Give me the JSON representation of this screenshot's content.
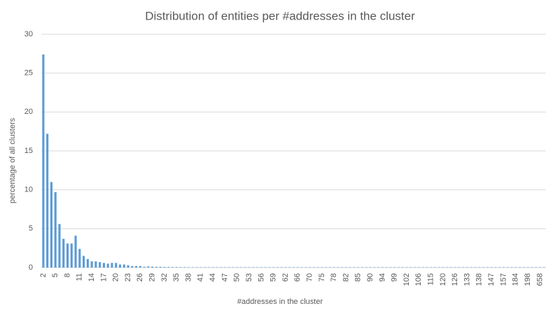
{
  "chart_data": {
    "type": "bar",
    "title": "Distribution of entities per #addresses in the cluster",
    "x_label": "#addresses in the cluster",
    "y_label": "percentage of all clusters",
    "categories": [
      "2",
      null,
      null,
      "5",
      null,
      null,
      "8",
      null,
      null,
      "11",
      null,
      null,
      "14",
      null,
      null,
      "17",
      null,
      null,
      "20",
      null,
      null,
      "23",
      null,
      null,
      "26",
      null,
      null,
      "29",
      null,
      null,
      "32",
      null,
      null,
      "35",
      null,
      null,
      "38",
      null,
      null,
      "41",
      null,
      null,
      "44",
      null,
      null,
      "47",
      null,
      null,
      "50",
      null,
      null,
      "53",
      null,
      null,
      "56",
      null,
      null,
      "59",
      null,
      null,
      "62",
      null,
      null,
      "66",
      null,
      null,
      "70",
      null,
      null,
      "75",
      null,
      null,
      "78",
      null,
      null,
      "82",
      null,
      null,
      "85",
      null,
      null,
      "90",
      null,
      null,
      "94",
      null,
      null,
      "99",
      null,
      null,
      "102",
      null,
      null,
      "106",
      null,
      null,
      "115",
      null,
      null,
      "120",
      null,
      null,
      "126",
      null,
      null,
      "133",
      null,
      null,
      "138",
      null,
      null,
      "147",
      null,
      null,
      "157",
      null,
      null,
      "184",
      null,
      null,
      "198",
      null,
      null,
      "658",
      null
    ],
    "values": [
      27.4,
      17.2,
      11.0,
      9.7,
      5.6,
      3.7,
      3.1,
      3.1,
      4.1,
      2.4,
      1.5,
      1.1,
      0.8,
      0.8,
      0.7,
      0.6,
      0.5,
      0.6,
      0.6,
      0.4,
      0.4,
      0.3,
      0.2,
      0.2,
      0.2,
      0.1,
      0.15,
      0.12,
      0.1,
      0.1,
      0.08,
      0.08,
      0.07,
      0.07,
      0.06,
      0.06,
      0.05,
      0.05,
      0.05,
      0.05,
      0.05,
      0.05,
      0.05,
      0.05,
      0.05,
      0.05,
      0.05,
      0.05,
      0.05,
      0.05,
      0.05,
      0.05,
      0.05,
      0.05,
      0.05,
      0.05,
      0.05,
      0.05,
      0.05,
      0.05,
      0.05,
      0.05,
      0.05,
      0.05,
      0.05,
      0.05,
      0.05,
      0.05,
      0.05,
      0.05,
      0.05,
      0.05,
      0.05,
      0.05,
      0.05,
      0.05,
      0.05,
      0.05,
      0.05,
      0.05,
      0.05,
      0.05,
      0.05,
      0.05,
      0.05,
      0.05,
      0.05,
      0.05,
      0.05,
      0.05,
      0.05,
      0.05,
      0.05,
      0.05,
      0.05,
      0.05,
      0.05,
      0.05,
      0.05,
      0.05,
      0.05,
      0.05,
      0.05,
      0.05,
      0.05,
      0.05,
      0.05,
      0.05,
      0.05,
      0.05,
      0.05,
      0.05,
      0.05,
      0.05,
      0.05,
      0.05,
      0.05,
      0.05,
      0.05,
      0.05,
      0.05,
      0.05,
      0.05,
      0.05,
      0.05
    ],
    "color": "#5b9bd5",
    "ylim": [
      0,
      30
    ],
    "yticks": [
      0,
      5,
      10,
      15,
      20,
      25,
      30
    ],
    "grid": true
  }
}
